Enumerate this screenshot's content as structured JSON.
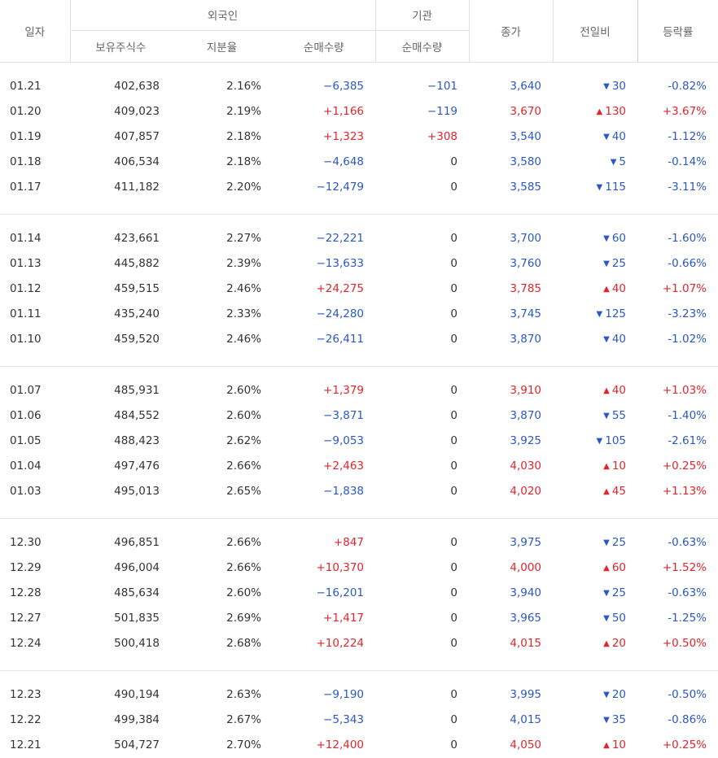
{
  "header": {
    "date": "일자",
    "foreign": "외국인",
    "institution": "기관",
    "close": "종가",
    "change": "전일비",
    "rate": "등락률",
    "holdings": "보유주식수",
    "ratio": "지분율",
    "foreign_net": "순매수량",
    "inst_net": "순매수량"
  },
  "groups": [
    [
      {
        "date": "01.21",
        "holdings": "402,638",
        "ratio": "2.16%",
        "foreign_net": "−6,385",
        "inst_net": "−101",
        "close": "3,640",
        "diff": "30",
        "rate": "-0.82%",
        "dir": "down"
      },
      {
        "date": "01.20",
        "holdings": "409,023",
        "ratio": "2.19%",
        "foreign_net": "+1,166",
        "inst_net": "−119",
        "close": "3,670",
        "diff": "130",
        "rate": "+3.67%",
        "dir": "up"
      },
      {
        "date": "01.19",
        "holdings": "407,857",
        "ratio": "2.18%",
        "foreign_net": "+1,323",
        "inst_net": "+308",
        "close": "3,540",
        "diff": "40",
        "rate": "-1.12%",
        "dir": "down"
      },
      {
        "date": "01.18",
        "holdings": "406,534",
        "ratio": "2.18%",
        "foreign_net": "−4,648",
        "inst_net": "0",
        "close": "3,580",
        "diff": "5",
        "rate": "-0.14%",
        "dir": "down"
      },
      {
        "date": "01.17",
        "holdings": "411,182",
        "ratio": "2.20%",
        "foreign_net": "−12,479",
        "inst_net": "0",
        "close": "3,585",
        "diff": "115",
        "rate": "-3.11%",
        "dir": "down"
      }
    ],
    [
      {
        "date": "01.14",
        "holdings": "423,661",
        "ratio": "2.27%",
        "foreign_net": "−22,221",
        "inst_net": "0",
        "close": "3,700",
        "diff": "60",
        "rate": "-1.60%",
        "dir": "down"
      },
      {
        "date": "01.13",
        "holdings": "445,882",
        "ratio": "2.39%",
        "foreign_net": "−13,633",
        "inst_net": "0",
        "close": "3,760",
        "diff": "25",
        "rate": "-0.66%",
        "dir": "down"
      },
      {
        "date": "01.12",
        "holdings": "459,515",
        "ratio": "2.46%",
        "foreign_net": "+24,275",
        "inst_net": "0",
        "close": "3,785",
        "diff": "40",
        "rate": "+1.07%",
        "dir": "up"
      },
      {
        "date": "01.11",
        "holdings": "435,240",
        "ratio": "2.33%",
        "foreign_net": "−24,280",
        "inst_net": "0",
        "close": "3,745",
        "diff": "125",
        "rate": "-3.23%",
        "dir": "down"
      },
      {
        "date": "01.10",
        "holdings": "459,520",
        "ratio": "2.46%",
        "foreign_net": "−26,411",
        "inst_net": "0",
        "close": "3,870",
        "diff": "40",
        "rate": "-1.02%",
        "dir": "down"
      }
    ],
    [
      {
        "date": "01.07",
        "holdings": "485,931",
        "ratio": "2.60%",
        "foreign_net": "+1,379",
        "inst_net": "0",
        "close": "3,910",
        "diff": "40",
        "rate": "+1.03%",
        "dir": "up"
      },
      {
        "date": "01.06",
        "holdings": "484,552",
        "ratio": "2.60%",
        "foreign_net": "−3,871",
        "inst_net": "0",
        "close": "3,870",
        "diff": "55",
        "rate": "-1.40%",
        "dir": "down"
      },
      {
        "date": "01.05",
        "holdings": "488,423",
        "ratio": "2.62%",
        "foreign_net": "−9,053",
        "inst_net": "0",
        "close": "3,925",
        "diff": "105",
        "rate": "-2.61%",
        "dir": "down"
      },
      {
        "date": "01.04",
        "holdings": "497,476",
        "ratio": "2.66%",
        "foreign_net": "+2,463",
        "inst_net": "0",
        "close": "4,030",
        "diff": "10",
        "rate": "+0.25%",
        "dir": "up"
      },
      {
        "date": "01.03",
        "holdings": "495,013",
        "ratio": "2.65%",
        "foreign_net": "−1,838",
        "inst_net": "0",
        "close": "4,020",
        "diff": "45",
        "rate": "+1.13%",
        "dir": "up"
      }
    ],
    [
      {
        "date": "12.30",
        "holdings": "496,851",
        "ratio": "2.66%",
        "foreign_net": "+847",
        "inst_net": "0",
        "close": "3,975",
        "diff": "25",
        "rate": "-0.63%",
        "dir": "down"
      },
      {
        "date": "12.29",
        "holdings": "496,004",
        "ratio": "2.66%",
        "foreign_net": "+10,370",
        "inst_net": "0",
        "close": "4,000",
        "diff": "60",
        "rate": "+1.52%",
        "dir": "up"
      },
      {
        "date": "12.28",
        "holdings": "485,634",
        "ratio": "2.60%",
        "foreign_net": "−16,201",
        "inst_net": "0",
        "close": "3,940",
        "diff": "25",
        "rate": "-0.63%",
        "dir": "down"
      },
      {
        "date": "12.27",
        "holdings": "501,835",
        "ratio": "2.69%",
        "foreign_net": "+1,417",
        "inst_net": "0",
        "close": "3,965",
        "diff": "50",
        "rate": "-1.25%",
        "dir": "down"
      },
      {
        "date": "12.24",
        "holdings": "500,418",
        "ratio": "2.68%",
        "foreign_net": "+10,224",
        "inst_net": "0",
        "close": "4,015",
        "diff": "20",
        "rate": "+0.50%",
        "dir": "up"
      }
    ],
    [
      {
        "date": "12.23",
        "holdings": "490,194",
        "ratio": "2.63%",
        "foreign_net": "−9,190",
        "inst_net": "0",
        "close": "3,995",
        "diff": "20",
        "rate": "-0.50%",
        "dir": "down"
      },
      {
        "date": "12.22",
        "holdings": "499,384",
        "ratio": "2.67%",
        "foreign_net": "−5,343",
        "inst_net": "0",
        "close": "4,015",
        "diff": "35",
        "rate": "-0.86%",
        "dir": "down"
      },
      {
        "date": "12.21",
        "holdings": "504,727",
        "ratio": "2.70%",
        "foreign_net": "+12,400",
        "inst_net": "0",
        "close": "4,050",
        "diff": "10",
        "rate": "+0.25%",
        "dir": "up"
      }
    ]
  ],
  "colors": {
    "up": "#e3242b",
    "down": "#2b58c4",
    "text": "#333333",
    "header": "#666666"
  },
  "icons": {
    "up": "triangle-up-icon",
    "down": "triangle-down-icon"
  }
}
